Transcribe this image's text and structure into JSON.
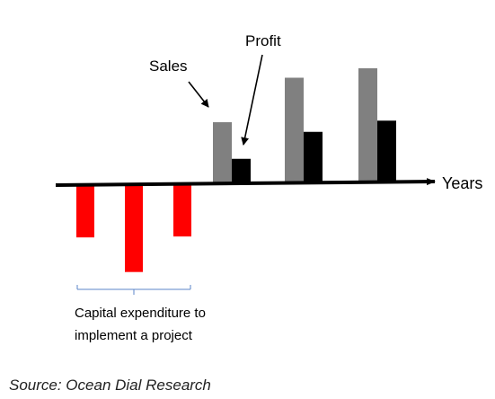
{
  "chart_data": {
    "type": "bar",
    "axis_label": "Years",
    "capex": {
      "label_line1": "Capital expenditure to",
      "label_line2": "implement a project",
      "values": [
        -3,
        -5,
        -3
      ],
      "color": "#ff0000"
    },
    "series": [
      {
        "name": "Sales",
        "values": [
          3.5,
          6,
          6.5
        ],
        "color": "#808080"
      },
      {
        "name": "Profit",
        "values": [
          1.4,
          2.9,
          3.5
        ],
        "color": "#000000"
      }
    ]
  },
  "source": "Source: Ocean Dial Research"
}
